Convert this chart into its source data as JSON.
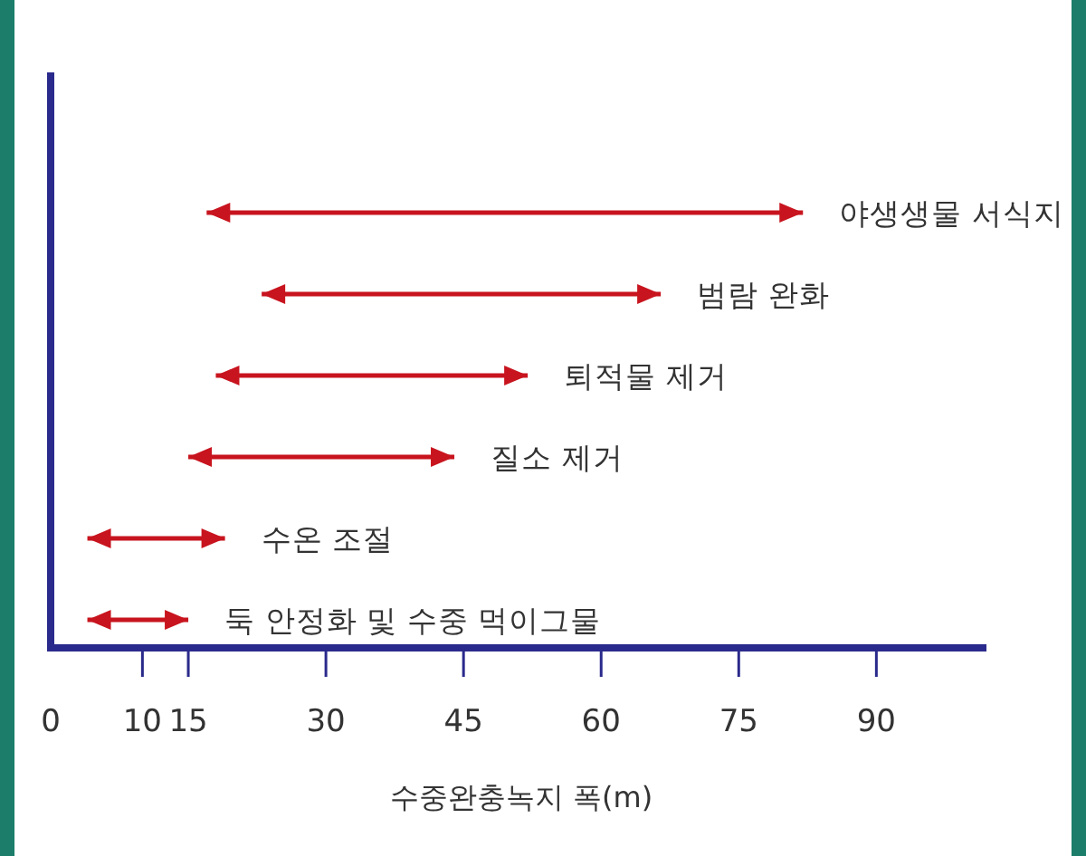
{
  "chart_data": {
    "type": "bar",
    "orientation": "horizontal",
    "xlabel": "수중완충녹지 폭(m)",
    "categories": [
      "야생생물 서식지",
      "범람 완화",
      "퇴적물 제거",
      "질소 제거",
      "수온 조절",
      "둑 안정화 및 수중 먹이그물"
    ],
    "base": [
      17,
      23,
      18,
      15,
      4,
      4
    ],
    "values": [
      65,
      43.5,
      34,
      29,
      15,
      11
    ],
    "color": "#c8141e",
    "xlim": [
      0,
      102
    ],
    "xticks": [
      0,
      10,
      15,
      30,
      45,
      60,
      75,
      90
    ],
    "grid": false
  }
}
